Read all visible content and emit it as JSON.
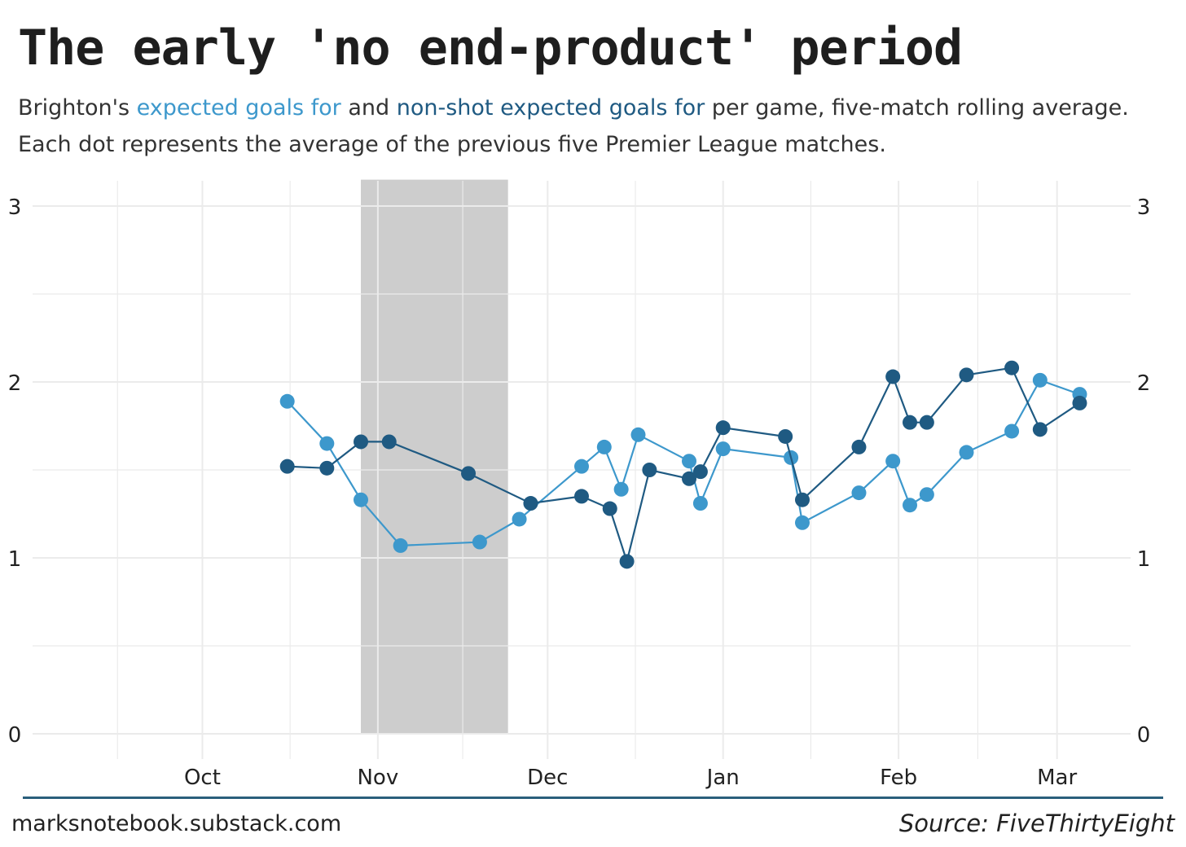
{
  "title": "The early 'no end-product' period",
  "subtitle": {
    "prefix": "Brighton's ",
    "xg_label": "expected goals for",
    "and": " and ",
    "npxg_label": "non-shot expected goals for",
    "suffix": " per game, five-match rolling average.",
    "line2": "Each dot represents the average of the previous five Premier League matches."
  },
  "colors": {
    "xg": "#3d98cc",
    "npxg": "#1f5a82",
    "highlight": "#c4c4c4",
    "grid": "#ebebeb"
  },
  "footer": {
    "site": "marksnotebook.substack.com",
    "source": "Source: FiveThirtyEight"
  },
  "chart_data": {
    "type": "line",
    "y_ticks": [
      "0",
      "1",
      "2",
      "3"
    ],
    "ylim": [
      0,
      3.1
    ],
    "x_ticks": [
      {
        "label": "Oct",
        "date": "2022-10-01"
      },
      {
        "label": "Nov",
        "date": "2022-11-01"
      },
      {
        "label": "Dec",
        "date": "2022-12-01"
      },
      {
        "label": "Jan",
        "date": "2023-01-01"
      },
      {
        "label": "Feb",
        "date": "2023-02-01"
      },
      {
        "label": "Mar",
        "date": "2023-03-01"
      }
    ],
    "xlim": [
      "2022-09-01",
      "2023-03-14"
    ],
    "highlight": {
      "start": "2022-10-29",
      "end": "2022-11-24",
      "ymin": 0,
      "ymax": 3.15
    },
    "series": [
      {
        "name": "expected goals for",
        "color_key": "xg",
        "points": [
          [
            "2022-10-16",
            1.89
          ],
          [
            "2022-10-23",
            1.65
          ],
          [
            "2022-10-29",
            1.33
          ],
          [
            "2022-11-05",
            1.07
          ],
          [
            "2022-11-19",
            1.09
          ],
          [
            "2022-11-26",
            1.22
          ],
          [
            "2022-12-07",
            1.52
          ],
          [
            "2022-12-11",
            1.63
          ],
          [
            "2022-12-14",
            1.39
          ],
          [
            "2022-12-17",
            1.7
          ],
          [
            "2022-12-26",
            1.55
          ],
          [
            "2022-12-28",
            1.31
          ],
          [
            "2023-01-01",
            1.62
          ],
          [
            "2023-01-13",
            1.57
          ],
          [
            "2023-01-15",
            1.2
          ],
          [
            "2023-01-25",
            1.37
          ],
          [
            "2023-01-31",
            1.55
          ],
          [
            "2023-02-03",
            1.3
          ],
          [
            "2023-02-06",
            1.36
          ],
          [
            "2023-02-13",
            1.6
          ],
          [
            "2023-02-21",
            1.72
          ],
          [
            "2023-02-26",
            2.01
          ],
          [
            "2023-03-05",
            1.93
          ]
        ]
      },
      {
        "name": "non-shot expected goals for",
        "color_key": "npxg",
        "points": [
          [
            "2022-10-16",
            1.52
          ],
          [
            "2022-10-23",
            1.51
          ],
          [
            "2022-10-29",
            1.66
          ],
          [
            "2022-11-03",
            1.66
          ],
          [
            "2022-11-17",
            1.48
          ],
          [
            "2022-11-28",
            1.31
          ],
          [
            "2022-12-07",
            1.35
          ],
          [
            "2022-12-12",
            1.28
          ],
          [
            "2022-12-15",
            0.98
          ],
          [
            "2022-12-19",
            1.5
          ],
          [
            "2022-12-26",
            1.45
          ],
          [
            "2022-12-28",
            1.49
          ],
          [
            "2023-01-01",
            1.74
          ],
          [
            "2023-01-12",
            1.69
          ],
          [
            "2023-01-15",
            1.33
          ],
          [
            "2023-01-25",
            1.63
          ],
          [
            "2023-01-31",
            2.03
          ],
          [
            "2023-02-03",
            1.77
          ],
          [
            "2023-02-06",
            1.77
          ],
          [
            "2023-02-13",
            2.04
          ],
          [
            "2023-02-21",
            2.08
          ],
          [
            "2023-02-26",
            1.73
          ],
          [
            "2023-03-05",
            1.88
          ]
        ]
      }
    ]
  }
}
